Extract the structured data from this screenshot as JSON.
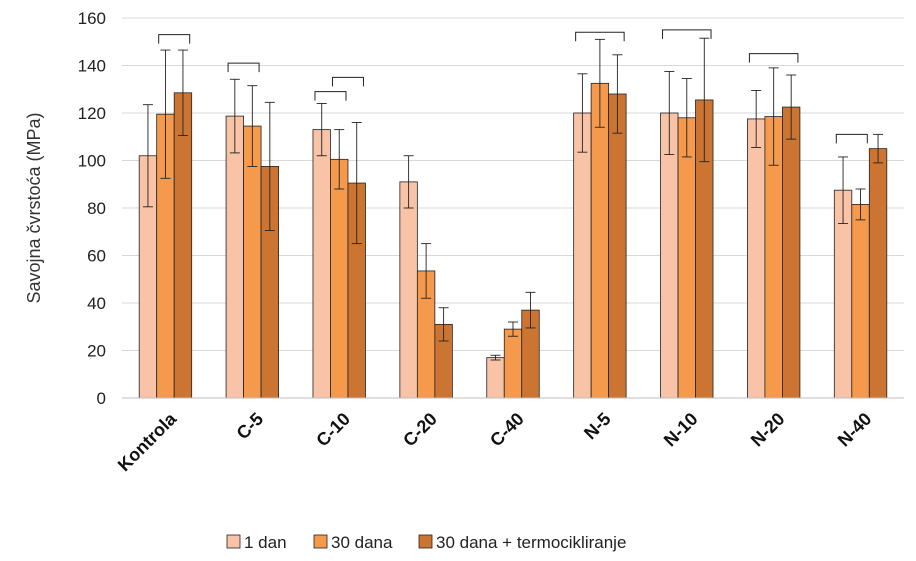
{
  "chart_data": {
    "type": "bar",
    "title": "",
    "xlabel": "",
    "ylabel": "Savojna čvrstoća (MPa)",
    "ylim": [
      0,
      160
    ],
    "yticks": [
      0,
      20,
      40,
      60,
      80,
      100,
      120,
      140,
      160
    ],
    "grid": true,
    "legend_position": "bottom",
    "categories": [
      "Kontrola",
      "C-5",
      "C-10",
      "C-20",
      "C-40",
      "N-5",
      "N-10",
      "N-20",
      "N-40"
    ],
    "series": [
      {
        "name": "1 dan",
        "color": "#f8c3a6",
        "values": [
          102,
          118.7,
          113,
          91,
          17,
          120,
          120,
          117.5,
          87.5
        ],
        "errors": [
          21.5,
          15.5,
          11,
          11,
          1,
          16.5,
          17.5,
          12,
          14
        ]
      },
      {
        "name": "30 dana",
        "color": "#f59a4c",
        "values": [
          119.5,
          114.5,
          100.5,
          53.5,
          29,
          132.5,
          118,
          118.5,
          81.5
        ],
        "errors": [
          27,
          17,
          12.5,
          11.5,
          3,
          18.5,
          16.5,
          20.5,
          6.5
        ]
      },
      {
        "name": "30 dana + termocikliranje",
        "color": "#cc7533",
        "values": [
          128.5,
          97.5,
          90.5,
          31,
          37,
          128,
          125.5,
          122.5,
          105
        ],
        "errors": [
          18,
          27,
          25.5,
          7,
          7.5,
          16.5,
          26,
          13.5,
          6
        ]
      }
    ],
    "brackets": [
      {
        "category": "Kontrola",
        "from_series": 1,
        "to_series": 2,
        "y": 153
      },
      {
        "category": "C-5",
        "from_series": 0,
        "to_series": 1,
        "y": 141
      },
      {
        "category": "C-10",
        "from_series": 0,
        "to_series": 1,
        "y": 129
      },
      {
        "category": "C-10",
        "from_series": 1,
        "to_series": 2,
        "y": 135
      },
      {
        "category": "N-5",
        "from_series": 0,
        "to_series": 2,
        "y": 154
      },
      {
        "category": "N-10",
        "from_series": 0,
        "to_series": 2,
        "y": 155
      },
      {
        "category": "N-20",
        "from_series": 0,
        "to_series": 2,
        "y": 145
      },
      {
        "category": "N-40",
        "from_series": 0,
        "to_series": 1,
        "y": 111
      }
    ]
  }
}
